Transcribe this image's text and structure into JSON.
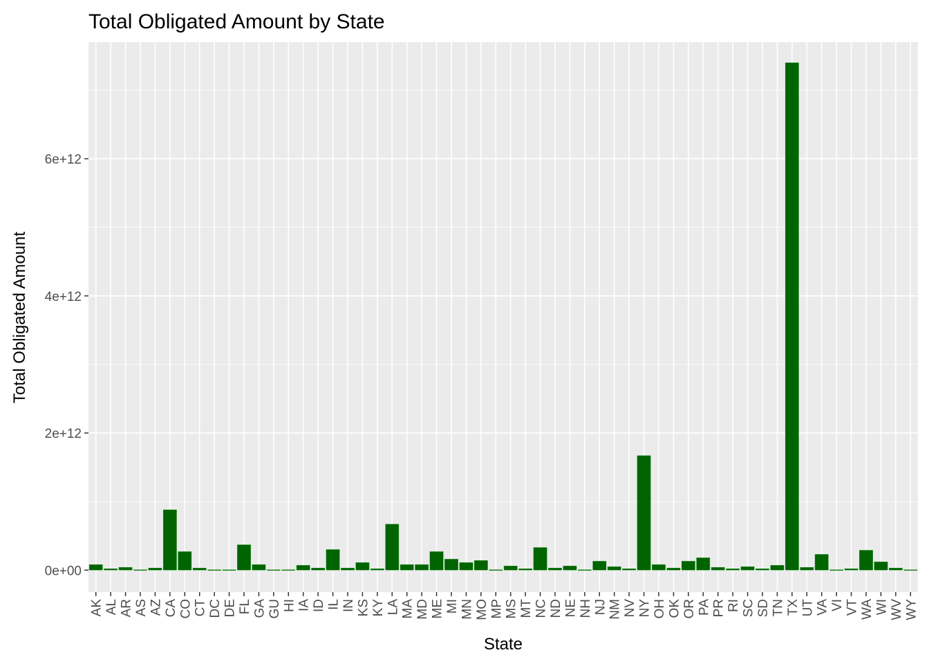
{
  "chart_data": {
    "type": "bar",
    "title": "Total Obligated Amount by State",
    "xlabel": "State",
    "ylabel": "Total Obligated Amount",
    "categories": [
      "AK",
      "AL",
      "AR",
      "AS",
      "AZ",
      "CA",
      "CO",
      "CT",
      "DC",
      "DE",
      "FL",
      "GA",
      "GU",
      "HI",
      "IA",
      "ID",
      "IL",
      "IN",
      "KS",
      "KY",
      "LA",
      "MA",
      "MD",
      "ME",
      "MI",
      "MN",
      "MO",
      "MP",
      "MS",
      "MT",
      "NC",
      "ND",
      "NE",
      "NH",
      "NJ",
      "NM",
      "NV",
      "NY",
      "OH",
      "OK",
      "OR",
      "PA",
      "PR",
      "RI",
      "SC",
      "SD",
      "TN",
      "TX",
      "UT",
      "VA",
      "VI",
      "VT",
      "WA",
      "WI",
      "WV",
      "WY"
    ],
    "values": [
      80000000000.0,
      20000000000.0,
      40000000000.0,
      5000000000.0,
      30000000000.0,
      880000000000.0,
      270000000000.0,
      30000000000.0,
      5000000000.0,
      5000000000.0,
      370000000000.0,
      80000000000.0,
      5000000000.0,
      5000000000.0,
      70000000000.0,
      30000000000.0,
      300000000000.0,
      30000000000.0,
      110000000000.0,
      20000000000.0,
      670000000000.0,
      80000000000.0,
      80000000000.0,
      270000000000.0,
      160000000000.0,
      110000000000.0,
      140000000000.0,
      5000000000.0,
      60000000000.0,
      20000000000.0,
      330000000000.0,
      30000000000.0,
      60000000000.0,
      5000000000.0,
      130000000000.0,
      50000000000.0,
      20000000000.0,
      1670000000000.0,
      80000000000.0,
      30000000000.0,
      130000000000.0,
      180000000000.0,
      40000000000.0,
      20000000000.0,
      50000000000.0,
      20000000000.0,
      70000000000.0,
      7400000000000.0,
      40000000000.0,
      230000000000.0,
      5000000000.0,
      20000000000.0,
      290000000000.0,
      120000000000.0,
      30000000000.0,
      5000000000.0
    ],
    "ylim": [
      -320000000000.0,
      7700000000000.0
    ],
    "yticks": [
      0,
      2000000000000.0,
      4000000000000.0,
      6000000000000.0
    ],
    "ytick_labels": [
      "0e+00",
      "2e+12",
      "4e+12",
      "6e+12"
    ],
    "grid": true,
    "legend": "none",
    "colors": {
      "bar_fill": "#006400",
      "bar_outline": "#228B22",
      "panel": "#EBEBEB",
      "grid": "#FFFFFF",
      "tick_text": "#4D4D4D",
      "tick_mark": "#333333"
    }
  }
}
